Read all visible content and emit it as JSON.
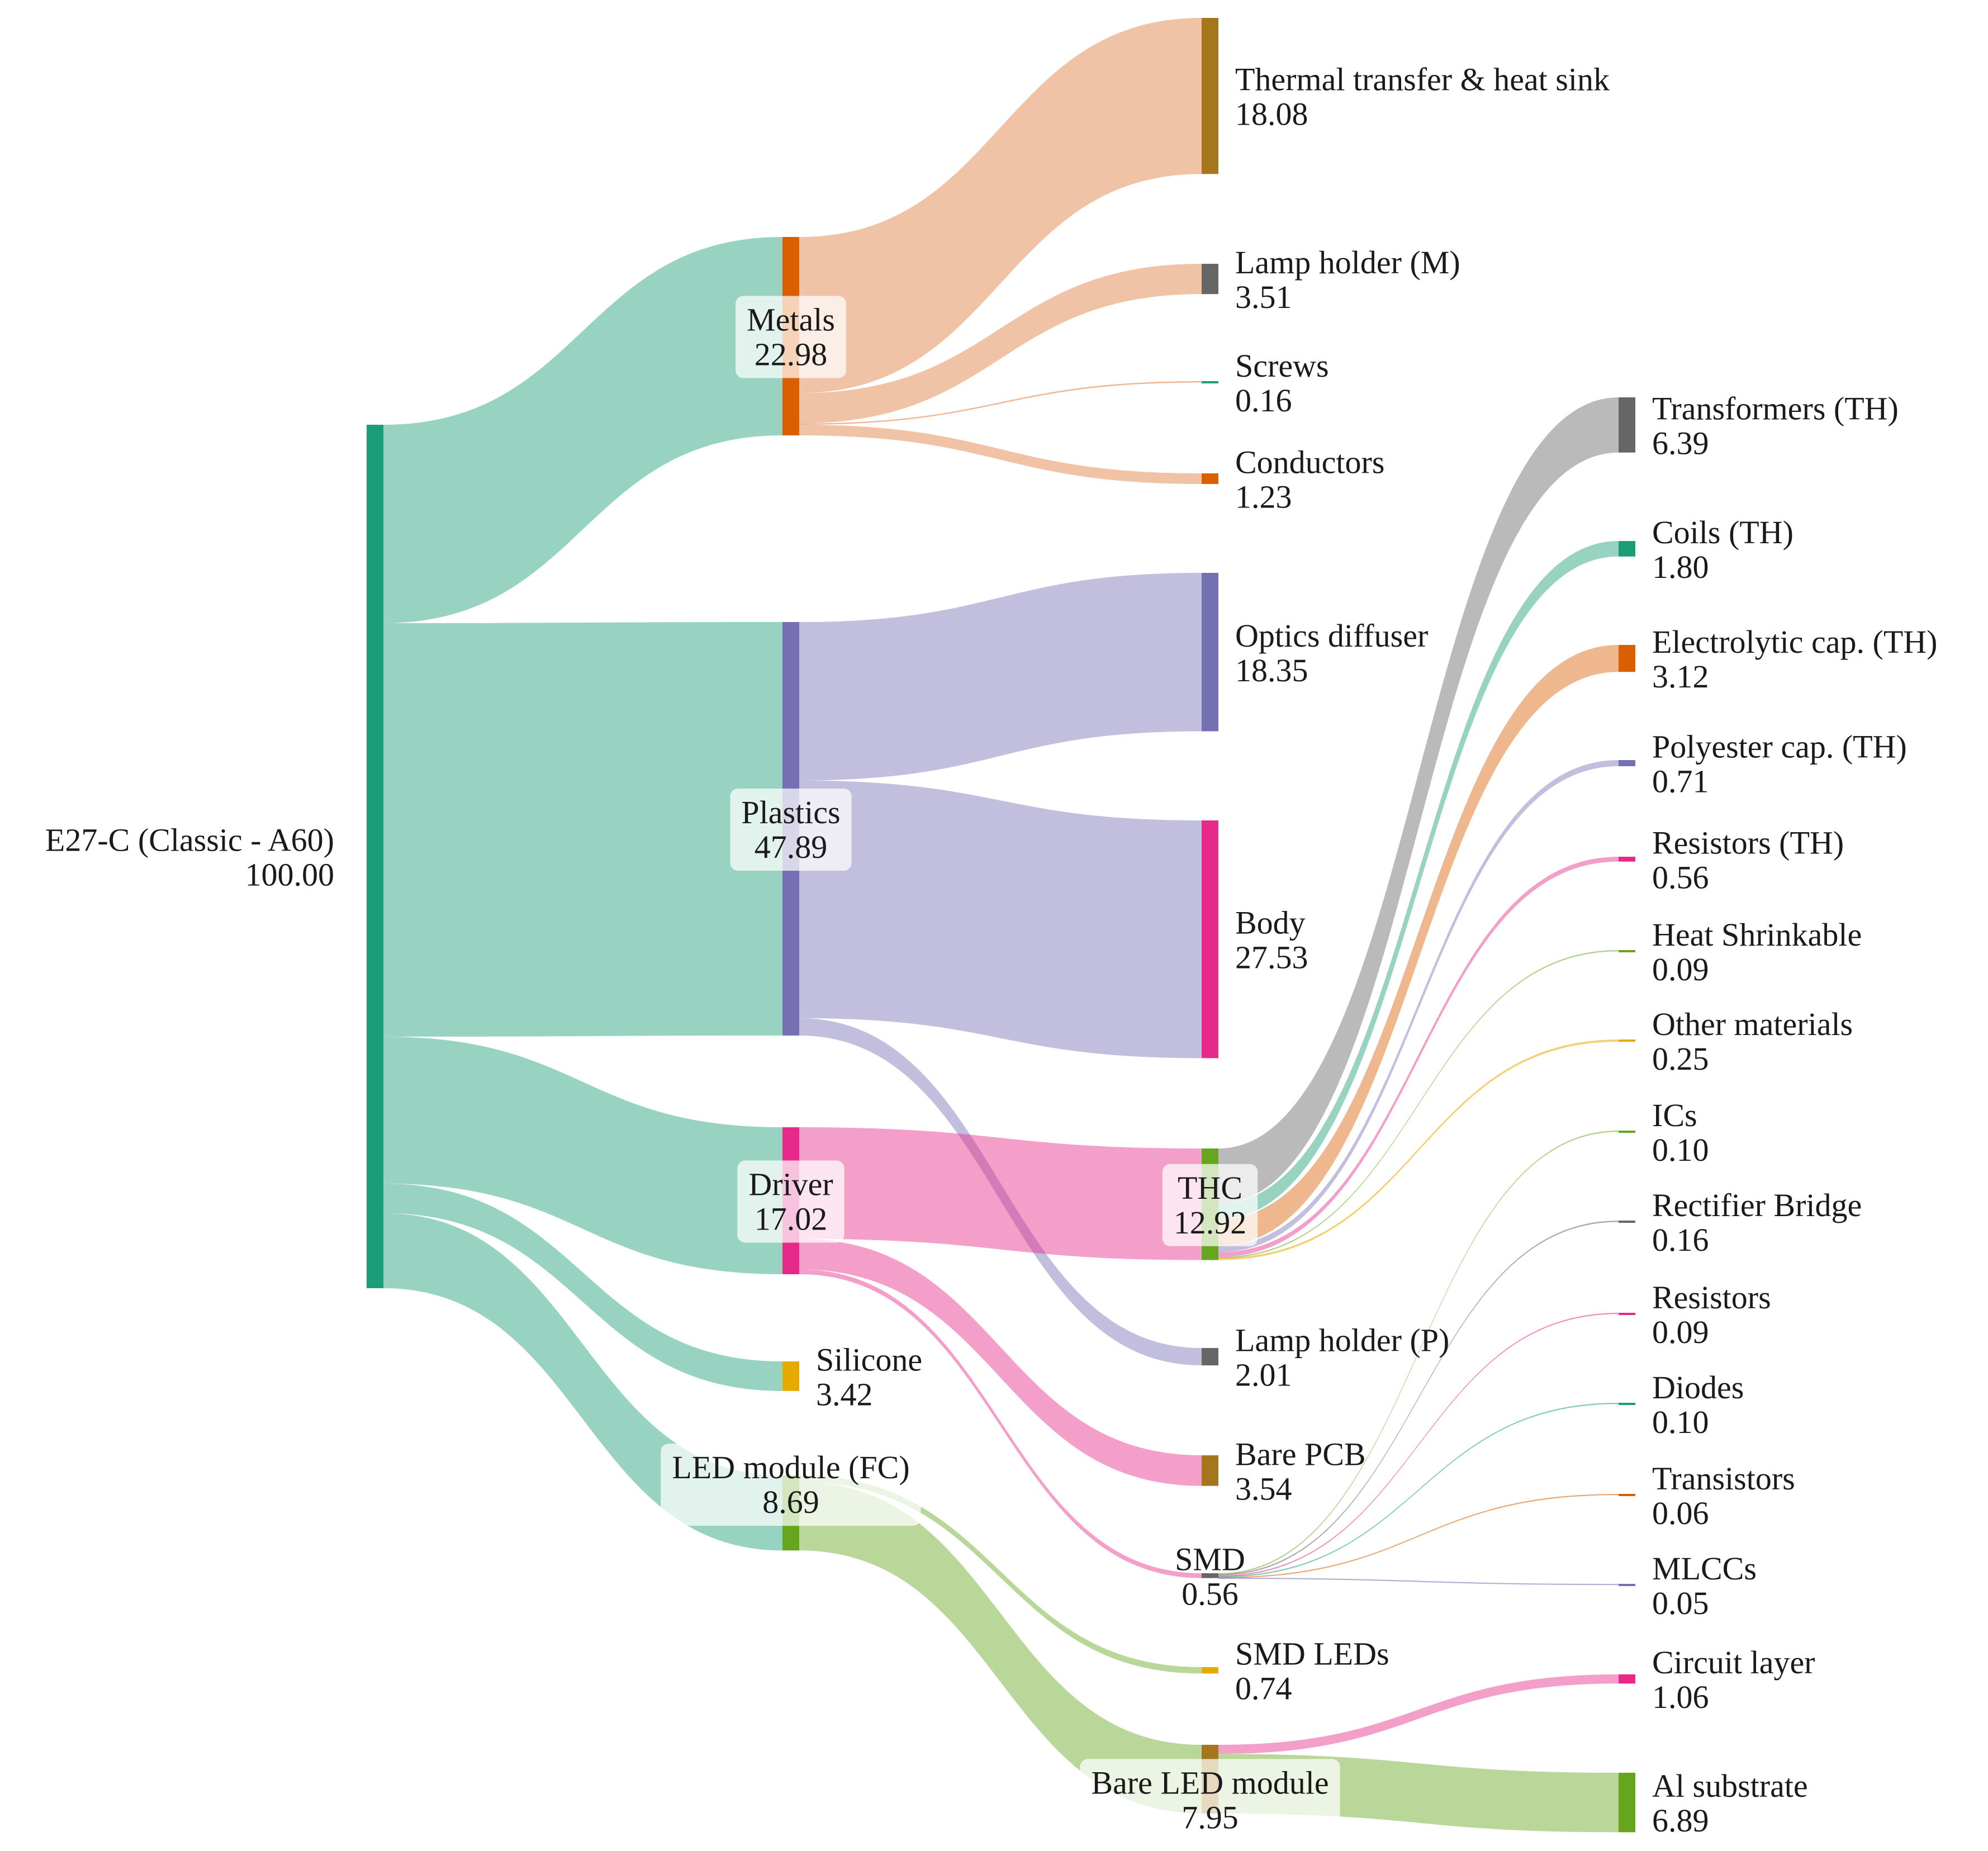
{
  "chart_data": {
    "type": "sankey",
    "title": "",
    "unit": "",
    "nodes": [
      {
        "id": "root",
        "label": "E27-C (Classic - A60)",
        "value": "100.00",
        "color": "#1b9e77",
        "boxed": false
      },
      {
        "id": "metals",
        "label": "Metals",
        "value": "22.98",
        "color": "#d95f02",
        "boxed": true
      },
      {
        "id": "plastics",
        "label": "Plastics",
        "value": "47.89",
        "color": "#7570b3",
        "boxed": true
      },
      {
        "id": "driver",
        "label": "Driver",
        "value": "17.02",
        "color": "#e7298a",
        "boxed": true
      },
      {
        "id": "silicone",
        "label": "Silicone",
        "value": "3.42",
        "color": "#e6ab02",
        "boxed": false
      },
      {
        "id": "ledmod",
        "label": "LED module (FC)",
        "value": "8.69",
        "color": "#66a61e",
        "boxed": true
      },
      {
        "id": "thermal",
        "label": "Thermal transfer & heat sink",
        "value": "18.08",
        "color": "#a6761d",
        "boxed": false
      },
      {
        "id": "lhm",
        "label": "Lamp holder (M)",
        "value": "3.51",
        "color": "#666666",
        "boxed": false
      },
      {
        "id": "screws",
        "label": "Screws",
        "value": "0.16",
        "color": "#1b9e77",
        "boxed": false
      },
      {
        "id": "cond",
        "label": "Conductors",
        "value": "1.23",
        "color": "#d95f02",
        "boxed": false
      },
      {
        "id": "optics",
        "label": "Optics diffuser",
        "value": "18.35",
        "color": "#7570b3",
        "boxed": true
      },
      {
        "id": "body",
        "label": "Body",
        "value": "27.53",
        "color": "#e7298a",
        "boxed": false
      },
      {
        "id": "thc",
        "label": "THC",
        "value": "12.92",
        "color": "#66a61e",
        "boxed": true
      },
      {
        "id": "lhp",
        "label": "Lamp holder (P)",
        "value": "2.01",
        "color": "#666666",
        "boxed": false
      },
      {
        "id": "pcb",
        "label": "Bare PCB",
        "value": "3.54",
        "color": "#a6761d",
        "boxed": false
      },
      {
        "id": "smd",
        "label": "SMD",
        "value": "0.56",
        "color": "#666666",
        "boxed": false
      },
      {
        "id": "smdled",
        "label": "SMD LEDs",
        "value": "0.74",
        "color": "#e6ab02",
        "boxed": false
      },
      {
        "id": "bareled",
        "label": "Bare LED module",
        "value": "7.95",
        "color": "#a6761d",
        "boxed": true
      },
      {
        "id": "transf",
        "label": "Transformers (TH)",
        "value": "6.39",
        "color": "#666666",
        "boxed": false
      },
      {
        "id": "coils",
        "label": "Coils (TH)",
        "value": "1.80",
        "color": "#1b9e77",
        "boxed": false
      },
      {
        "id": "ecap",
        "label": "Electrolytic cap. (TH)",
        "value": "3.12",
        "color": "#d95f02",
        "boxed": false
      },
      {
        "id": "pcap",
        "label": "Polyester cap. (TH)",
        "value": "0.71",
        "color": "#7570b3",
        "boxed": false
      },
      {
        "id": "resth",
        "label": "Resistors (TH)",
        "value": "0.56",
        "color": "#e7298a",
        "boxed": false
      },
      {
        "id": "heat",
        "label": "Heat Shrinkable",
        "value": "0.09",
        "color": "#66a61e",
        "boxed": false
      },
      {
        "id": "other",
        "label": "Other materials",
        "value": "0.25",
        "color": "#e6ab02",
        "boxed": false
      },
      {
        "id": "ics",
        "label": "ICs",
        "value": "0.10",
        "color": "#66a61e",
        "boxed": false
      },
      {
        "id": "rect",
        "label": "Rectifier Bridge",
        "value": "0.16",
        "color": "#666666",
        "boxed": false
      },
      {
        "id": "res",
        "label": "Resistors",
        "value": "0.09",
        "color": "#e7298a",
        "boxed": false
      },
      {
        "id": "diodes",
        "label": "Diodes",
        "value": "0.10",
        "color": "#1b9e77",
        "boxed": false
      },
      {
        "id": "trans",
        "label": "Transistors",
        "value": "0.06",
        "color": "#d95f02",
        "boxed": false
      },
      {
        "id": "mlcc",
        "label": "MLCCs",
        "value": "0.05",
        "color": "#7570b3",
        "boxed": false
      },
      {
        "id": "circ",
        "label": "Circuit layer",
        "value": "1.06",
        "color": "#e7298a",
        "boxed": false
      },
      {
        "id": "al",
        "label": "Al substrate",
        "value": "6.89",
        "color": "#66a61e",
        "boxed": false
      }
    ],
    "links": [
      {
        "source": "root",
        "target": "metals",
        "value": 22.98,
        "color": "#1b9e77"
      },
      {
        "source": "root",
        "target": "plastics",
        "value": 47.89,
        "color": "#1b9e77"
      },
      {
        "source": "root",
        "target": "driver",
        "value": 17.02,
        "color": "#1b9e77"
      },
      {
        "source": "root",
        "target": "silicone",
        "value": 3.42,
        "color": "#1b9e77"
      },
      {
        "source": "root",
        "target": "ledmod",
        "value": 8.69,
        "color": "#1b9e77"
      },
      {
        "source": "metals",
        "target": "thermal",
        "value": 18.08,
        "color": "#e07b39"
      },
      {
        "source": "metals",
        "target": "lhm",
        "value": 3.51,
        "color": "#e07b39"
      },
      {
        "source": "metals",
        "target": "screws",
        "value": 0.16,
        "color": "#e07b39"
      },
      {
        "source": "metals",
        "target": "cond",
        "value": 1.23,
        "color": "#e07b39"
      },
      {
        "source": "plastics",
        "target": "optics",
        "value": 18.35,
        "color": "#7570b3"
      },
      {
        "source": "plastics",
        "target": "body",
        "value": 27.53,
        "color": "#7570b3"
      },
      {
        "source": "plastics",
        "target": "lhp",
        "value": 2.01,
        "color": "#7570b3"
      },
      {
        "source": "driver",
        "target": "thc",
        "value": 12.92,
        "color": "#e7298a"
      },
      {
        "source": "driver",
        "target": "pcb",
        "value": 3.54,
        "color": "#e7298a"
      },
      {
        "source": "driver",
        "target": "smd",
        "value": 0.56,
        "color": "#e7298a"
      },
      {
        "source": "ledmod",
        "target": "smdled",
        "value": 0.74,
        "color": "#66a61e"
      },
      {
        "source": "ledmod",
        "target": "bareled",
        "value": 7.95,
        "color": "#66a61e"
      },
      {
        "source": "thc",
        "target": "transf",
        "value": 6.39,
        "color": "#666666"
      },
      {
        "source": "thc",
        "target": "coils",
        "value": 1.8,
        "color": "#1b9e77"
      },
      {
        "source": "thc",
        "target": "ecap",
        "value": 3.12,
        "color": "#d95f02"
      },
      {
        "source": "thc",
        "target": "pcap",
        "value": 0.71,
        "color": "#7570b3"
      },
      {
        "source": "thc",
        "target": "resth",
        "value": 0.56,
        "color": "#e7298a"
      },
      {
        "source": "thc",
        "target": "heat",
        "value": 0.09,
        "color": "#66a61e"
      },
      {
        "source": "thc",
        "target": "other",
        "value": 0.25,
        "color": "#e6ab02"
      },
      {
        "source": "smd",
        "target": "ics",
        "value": 0.1,
        "color": "#66a61e"
      },
      {
        "source": "smd",
        "target": "rect",
        "value": 0.16,
        "color": "#666666"
      },
      {
        "source": "smd",
        "target": "res",
        "value": 0.09,
        "color": "#e7298a"
      },
      {
        "source": "smd",
        "target": "diodes",
        "value": 0.1,
        "color": "#1b9e77"
      },
      {
        "source": "smd",
        "target": "trans",
        "value": 0.06,
        "color": "#d95f02"
      },
      {
        "source": "smd",
        "target": "mlcc",
        "value": 0.05,
        "color": "#7570b3"
      },
      {
        "source": "bareled",
        "target": "circ",
        "value": 1.06,
        "color": "#e7298a"
      },
      {
        "source": "bareled",
        "target": "al",
        "value": 6.89,
        "color": "#66a61e"
      }
    ]
  }
}
